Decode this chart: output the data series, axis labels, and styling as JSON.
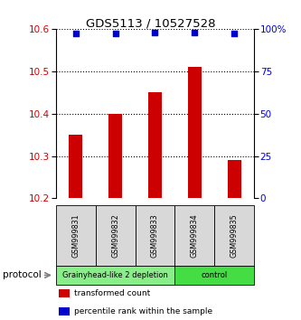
{
  "title": "GDS5113 / 10527528",
  "samples": [
    "GSM999831",
    "GSM999832",
    "GSM999833",
    "GSM999834",
    "GSM999835"
  ],
  "bar_values": [
    10.35,
    10.4,
    10.45,
    10.51,
    10.29
  ],
  "bar_bottom": 10.2,
  "bar_color": "#cc0000",
  "dot_values": [
    97,
    97,
    98,
    98,
    97
  ],
  "dot_color": "#0000cc",
  "ylim_left": [
    10.2,
    10.6
  ],
  "ylim_right": [
    0,
    100
  ],
  "yticks_left": [
    10.2,
    10.3,
    10.4,
    10.5,
    10.6
  ],
  "yticks_right": [
    0,
    25,
    50,
    75,
    100
  ],
  "ytick_labels_right": [
    "0",
    "25",
    "50",
    "75",
    "100%"
  ],
  "groups": [
    {
      "label": "Grainyhead-like 2 depletion",
      "indices": [
        0,
        1,
        2
      ],
      "color": "#88ee88"
    },
    {
      "label": "control",
      "indices": [
        3,
        4
      ],
      "color": "#44dd44"
    }
  ],
  "protocol_label": "protocol",
  "legend_items": [
    {
      "color": "#cc0000",
      "label": "transformed count"
    },
    {
      "color": "#0000cc",
      "label": "percentile rank within the sample"
    }
  ],
  "sample_box_color": "#d8d8d8",
  "bar_width": 0.35
}
